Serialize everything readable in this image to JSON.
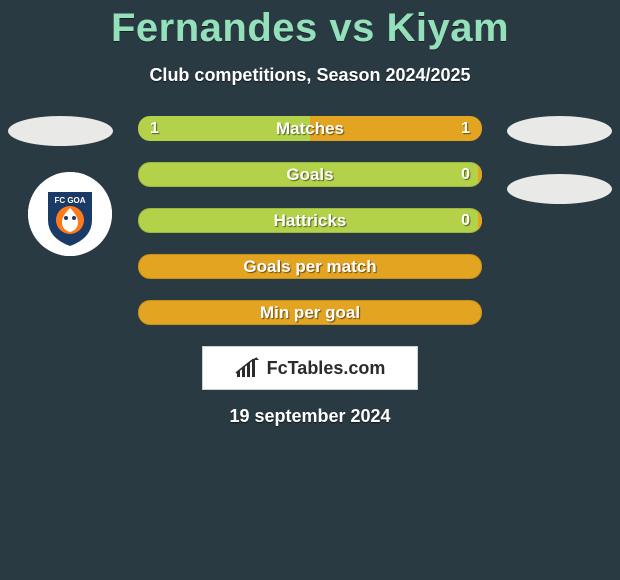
{
  "title": "Fernandes vs Kiyam",
  "subtitle": "Club competitions, Season 2024/2025",
  "date": "19 september 2024",
  "footer_text": "FcTables.com",
  "colors": {
    "background": "#2a3a42",
    "title": "#94e0bb",
    "left_fill": "#b3d24a",
    "right_fill": "#e3a422",
    "neutral_fill": "#e3a422",
    "ellipse": "#e9e9e8"
  },
  "club_badge": {
    "name": "fc-goa-logo",
    "primary": "#1a3b66",
    "accent": "#ff7a1a",
    "text": "FC GOA"
  },
  "bars": [
    {
      "label": "Matches",
      "left": "1",
      "right": "1",
      "left_pct": 50,
      "right_pct": 50
    },
    {
      "label": "Goals",
      "left": "",
      "right": "0",
      "left_pct": 100,
      "right_pct": 0
    },
    {
      "label": "Hattricks",
      "left": "",
      "right": "0",
      "left_pct": 100,
      "right_pct": 0
    },
    {
      "label": "Goals per match",
      "left": "",
      "right": "",
      "left_pct": 100,
      "right_pct": 0
    },
    {
      "label": "Min per goal",
      "left": "",
      "right": "",
      "left_pct": 100,
      "right_pct": 0
    }
  ]
}
